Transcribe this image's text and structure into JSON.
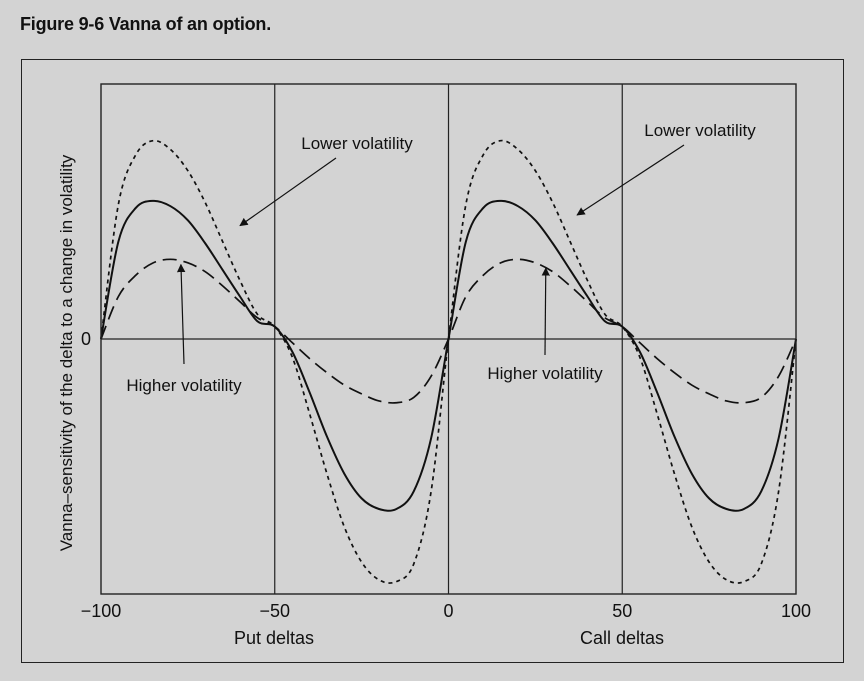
{
  "figure": {
    "title": "Figure 9-6  Vanna of an option."
  },
  "chart_data": {
    "type": "line",
    "title": "",
    "ylabel": "Vanna–sensitivity of the delta to a change in volatility",
    "xlabel_left": "Put deltas",
    "xlabel_right": "Call deltas",
    "xlim": [
      -100,
      100
    ],
    "ylim": [
      -1.44,
      1.44
    ],
    "grid": "vertical lines at -50, 0, 50",
    "legend": "none",
    "x_ticks": [
      {
        "value": -100,
        "label": "−100"
      },
      {
        "value": -50,
        "label": "−50"
      },
      {
        "value": 0,
        "label": "0"
      },
      {
        "value": 50,
        "label": "50"
      },
      {
        "value": 100,
        "label": "100"
      }
    ],
    "y_ticks": [
      {
        "value": 0,
        "label": "0"
      }
    ],
    "x": [
      -100,
      -95,
      -90,
      -85,
      -80,
      -75,
      -70,
      -65,
      -60,
      -55,
      -50,
      -45,
      -40,
      -35,
      -30,
      -25,
      -20,
      -15,
      -10,
      -5,
      0,
      5,
      10,
      15,
      20,
      25,
      30,
      35,
      40,
      45,
      50,
      55,
      60,
      65,
      70,
      75,
      80,
      85,
      90,
      95,
      100
    ],
    "series": [
      {
        "style": "dashed-short",
        "values": [
          0.0,
          0.76,
          1.04,
          1.12,
          1.07,
          0.95,
          0.77,
          0.55,
          0.33,
          0.14,
          0.07,
          -0.1,
          -0.42,
          -0.76,
          -1.06,
          -1.26,
          -1.36,
          -1.37,
          -1.27,
          -0.86,
          0.0,
          0.76,
          1.04,
          1.12,
          1.07,
          0.95,
          0.77,
          0.55,
          0.33,
          0.14,
          0.07,
          -0.1,
          -0.42,
          -0.76,
          -1.06,
          -1.26,
          -1.36,
          -1.37,
          -1.27,
          -0.86,
          0.0
        ]
      },
      {
        "style": "solid",
        "values": [
          0.0,
          0.55,
          0.74,
          0.78,
          0.75,
          0.67,
          0.54,
          0.39,
          0.24,
          0.1,
          0.07,
          -0.07,
          -0.3,
          -0.55,
          -0.76,
          -0.9,
          -0.96,
          -0.96,
          -0.86,
          -0.56,
          0.0,
          0.55,
          0.74,
          0.78,
          0.75,
          0.67,
          0.54,
          0.39,
          0.24,
          0.1,
          0.07,
          -0.07,
          -0.3,
          -0.55,
          -0.76,
          -0.9,
          -0.96,
          -0.96,
          -0.86,
          -0.56,
          0.0
        ]
      },
      {
        "style": "dashed-long",
        "values": [
          0.0,
          0.24,
          0.36,
          0.43,
          0.45,
          0.43,
          0.38,
          0.3,
          0.21,
          0.12,
          0.07,
          -0.02,
          -0.11,
          -0.19,
          -0.26,
          -0.31,
          -0.35,
          -0.36,
          -0.33,
          -0.21,
          0.0,
          0.24,
          0.36,
          0.43,
          0.45,
          0.43,
          0.38,
          0.3,
          0.21,
          0.12,
          0.07,
          -0.02,
          -0.11,
          -0.19,
          -0.26,
          -0.31,
          -0.35,
          -0.36,
          -0.33,
          -0.21,
          0.0
        ]
      }
    ],
    "annotations": [
      {
        "text": "Lower volatility",
        "arrow_to": [
          -60,
          0.64
        ]
      },
      {
        "text": "Lower volatility",
        "arrow_to": [
          37,
          0.7
        ]
      },
      {
        "text": "Higher volatility",
        "arrow_to": [
          -77,
          0.42
        ]
      },
      {
        "text": "Higher volatility",
        "arrow_to": [
          28,
          0.4
        ]
      }
    ]
  }
}
